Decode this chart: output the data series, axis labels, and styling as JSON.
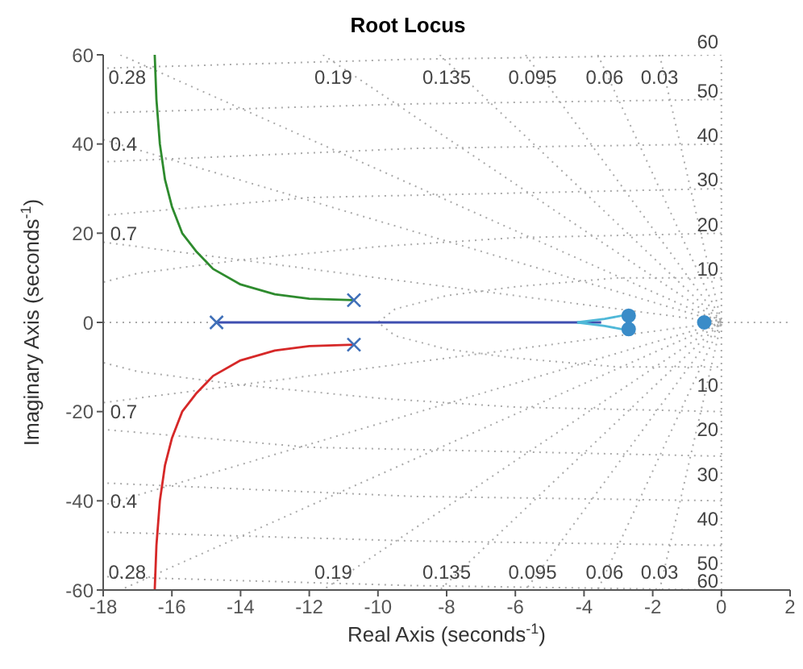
{
  "chart_data": {
    "type": "line",
    "title": "Root Locus",
    "xlabel": "Real Axis (seconds$^{-1}$)",
    "ylabel": "Imaginary Axis (seconds$^{-1}$)",
    "xlim": [
      -18,
      2
    ],
    "xticks": [
      -18,
      -16,
      -14,
      -12,
      -10,
      -8,
      -6,
      -4,
      -2,
      0,
      2
    ],
    "ylim": [
      -60,
      60
    ],
    "yticks": [
      -60,
      -40,
      -20,
      0,
      20,
      40,
      60
    ],
    "series": [
      {
        "line_style": "dotted",
        "color": "#aaaaaa",
        "x": [
          -17.5,
          0,
          -17.5
        ],
        "values": [
          60,
          0,
          -60
        ]
      },
      {
        "line_style": "dotted",
        "color": "#aaaaaa",
        "x": [
          -11.6,
          0,
          -11.6
        ],
        "values": [
          60,
          0,
          -60
        ]
      },
      {
        "line_style": "dotted",
        "color": "#aaaaaa",
        "x": [
          -8.2,
          0,
          -8.2
        ],
        "values": [
          60,
          0,
          -60
        ]
      },
      {
        "line_style": "dotted",
        "color": "#aaaaaa",
        "x": [
          -5.7,
          0,
          -5.7
        ],
        "values": [
          60,
          0,
          -60
        ]
      },
      {
        "line_style": "dotted",
        "color": "#aaaaaa",
        "x": [
          -3.6,
          0,
          -3.6
        ],
        "values": [
          60,
          0,
          -60
        ]
      },
      {
        "line_style": "dotted",
        "color": "#aaaaaa",
        "x": [
          -1.8,
          0,
          -1.8
        ],
        "values": [
          60,
          0,
          -60
        ]
      },
      {
        "line_style": "dotted",
        "color": "#aaaaaa",
        "x": [
          -18,
          0,
          -18
        ],
        "values": [
          41,
          0,
          -41
        ]
      },
      {
        "line_style": "dotted",
        "color": "#aaaaaa",
        "x": [
          -18,
          0,
          -18
        ],
        "values": [
          18,
          0,
          -18
        ]
      },
      {
        "line_style": "dotted",
        "color": "#aaaaaa",
        "x": [
          0,
          -3,
          -6,
          -8,
          -9.5,
          -10,
          -9.5,
          -8,
          -6,
          -3,
          0
        ],
        "values": [
          10,
          10,
          8,
          6,
          3,
          0,
          -3,
          -6,
          -8,
          -10,
          -10
        ]
      },
      {
        "line_style": "dotted",
        "color": "#aaaaaa",
        "x": [
          0,
          -6,
          -10,
          -14,
          -17,
          -18
        ],
        "values": [
          20,
          19,
          17,
          14,
          11,
          9
        ]
      },
      {
        "line_style": "dotted",
        "color": "#aaaaaa",
        "x": [
          0,
          -6,
          -10,
          -14,
          -17,
          -18
        ],
        "values": [
          -20,
          -19,
          -17,
          -14,
          -11,
          -9
        ]
      },
      {
        "line_style": "dotted",
        "color": "#aaaaaa",
        "x": [
          0,
          -6,
          -12,
          -18
        ],
        "values": [
          30,
          29,
          28,
          24
        ]
      },
      {
        "line_style": "dotted",
        "color": "#aaaaaa",
        "x": [
          0,
          -6,
          -12,
          -18
        ],
        "values": [
          -30,
          -29,
          -28,
          -24
        ]
      },
      {
        "line_style": "dotted",
        "color": "#aaaaaa",
        "x": [
          0,
          -9,
          -18
        ],
        "values": [
          40,
          39,
          36
        ]
      },
      {
        "line_style": "dotted",
        "color": "#aaaaaa",
        "x": [
          0,
          -9,
          -18
        ],
        "values": [
          -40,
          -39,
          -36
        ]
      },
      {
        "line_style": "dotted",
        "color": "#aaaaaa",
        "x": [
          0,
          -9,
          -18
        ],
        "values": [
          50,
          49,
          47
        ]
      },
      {
        "line_style": "dotted",
        "color": "#aaaaaa",
        "x": [
          0,
          -9,
          -18
        ],
        "values": [
          -50,
          -49,
          -47
        ]
      },
      {
        "line_style": "dotted",
        "color": "#aaaaaa",
        "x": [
          0,
          -9,
          -18
        ],
        "values": [
          60,
          59,
          57
        ]
      },
      {
        "line_style": "dotted",
        "color": "#aaaaaa",
        "x": [
          0,
          -9,
          -18
        ],
        "values": [
          -60,
          -59,
          -57
        ]
      },
      {
        "line_style": "dotted",
        "color": "#aaaaaa",
        "x": [
          -18,
          -14.9
        ],
        "values": [
          0,
          0
        ]
      },
      {
        "line_style": "dotted",
        "color": "#aaaaaa",
        "x": [
          0,
          2
        ],
        "values": [
          0,
          0
        ]
      },
      {
        "line_style": "dotted",
        "color": "#aaaaaa",
        "x": [
          0,
          0
        ],
        "values": [
          -60,
          60
        ]
      },
      {
        "line_style": "solid",
        "color": "#3f4fb0",
        "x": [
          -14.7,
          -3.5
        ],
        "values": [
          0,
          0
        ]
      },
      {
        "line_style": "solid",
        "color": "#2e8b2e",
        "x": [
          -10.7,
          -12,
          -13,
          -14,
          -14.8,
          -15.3,
          -15.7,
          -16,
          -16.2,
          -16.35,
          -16.45,
          -16.5
        ],
        "values": [
          5,
          5.3,
          6.3,
          8.5,
          12,
          16,
          20,
          26,
          32,
          40,
          50,
          60
        ]
      },
      {
        "line_style": "solid",
        "color": "#d62828",
        "x": [
          -10.7,
          -12,
          -13,
          -14,
          -14.8,
          -15.3,
          -15.7,
          -16,
          -16.2,
          -16.35,
          -16.45,
          -16.5
        ],
        "values": [
          -5,
          -5.3,
          -6.3,
          -8.5,
          -12,
          -16,
          -20,
          -26,
          -32,
          -40,
          -50,
          -60
        ]
      },
      {
        "line_style": "solid",
        "color": "#4fb8d8",
        "x": [
          -4.2,
          -3.4,
          -2.9,
          -2.6,
          -2.7
        ],
        "values": [
          0,
          0.8,
          1.5,
          1.5,
          0
        ]
      },
      {
        "line_style": "solid",
        "color": "#4fb8d8",
        "x": [
          -4.2,
          -3.4,
          -2.9,
          -2.6,
          -2.7
        ],
        "values": [
          0,
          -0.8,
          -1.5,
          -1.5,
          0
        ]
      },
      {
        "type": "scatter",
        "marker": "cross",
        "color": "#3f6fb8",
        "x": [
          -14.7,
          -10.7,
          -10.7
        ],
        "values": [
          0,
          5,
          -5
        ]
      },
      {
        "type": "scatter",
        "marker": "circle",
        "color": "#3a8cc8",
        "x": [
          -2.7,
          -2.7,
          -0.5
        ],
        "values": [
          1.5,
          -1.5,
          0
        ]
      }
    ],
    "annotations": [
      "0.28",
      "0.19",
      "0.135",
      "0.095",
      "0.06",
      "0.03",
      "0.4",
      "0.7",
      "0.7",
      "0.4",
      "0.28",
      "0.19",
      "0.135",
      "0.095",
      "0.06",
      "0.03",
      "60",
      "50",
      "40",
      "30",
      "20",
      "10",
      "10",
      "20",
      "30",
      "40",
      "50",
      "60"
    ]
  }
}
